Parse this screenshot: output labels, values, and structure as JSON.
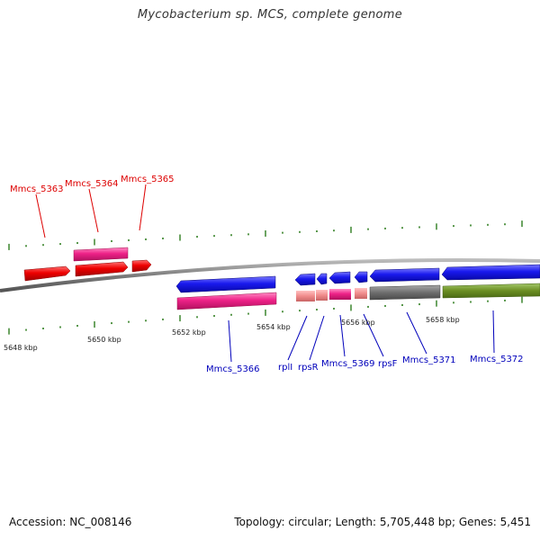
{
  "title": "Mycobacterium sp. MCS, complete genome",
  "footer": {
    "accession": "Accession: NC_008146",
    "summary": "Topology: circular; Length: 5,705,448 bp; Genes: 5,451"
  },
  "colors": {
    "forward_label": "#dd0000",
    "reverse_label": "#0000bb",
    "red_gene": "#ee0000",
    "pink_gene": "#ee2288",
    "light_pink_gene": "#f08c8c",
    "blue_gene": "#1a1aee",
    "gray_feature": "#6f6f6f",
    "olive_feature": "#6b8e23",
    "tick": "#2e7d1e",
    "backbone": "#808080"
  },
  "scale": {
    "ticks": [
      "5648 kbp",
      "5650 kbp",
      "5652 kbp",
      "5654 kbp",
      "5656 kbp",
      "5658 kbp"
    ]
  },
  "genes": {
    "top": [
      {
        "name": "Mmcs_5363"
      },
      {
        "name": "Mmcs_5364"
      },
      {
        "name": "Mmcs_5365"
      }
    ],
    "bottom": [
      {
        "name": "Mmcs_5366"
      },
      {
        "name": "rplI"
      },
      {
        "name": "rpsR"
      },
      {
        "name": "Mmcs_5369"
      },
      {
        "name": "rpsF"
      },
      {
        "name": "Mmcs_5371"
      },
      {
        "name": "Mmcs_5372"
      }
    ]
  }
}
